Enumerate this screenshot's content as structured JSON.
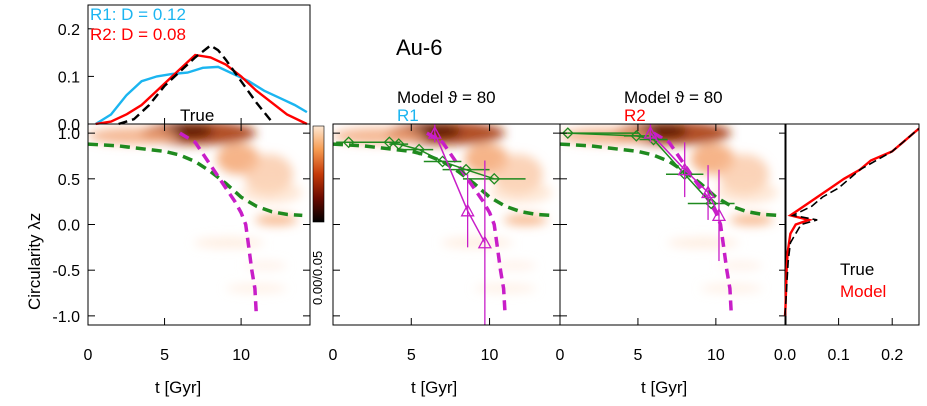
{
  "chart_data": {
    "type": "line",
    "figure_title": "Au-6",
    "axes": {
      "x": {
        "label": "t [Gyr]",
        "range": [
          0,
          14.5
        ],
        "ticks": [
          0,
          5,
          10
        ]
      },
      "y": {
        "label": "Circularity λz",
        "range": [
          -1.1,
          1.1
        ],
        "ticks": [
          "1.0",
          "0.5",
          "0.0",
          "-0.5",
          "-1.0"
        ]
      },
      "top_y": {
        "range": [
          0,
          0.25
        ],
        "ticks": [
          "0.0",
          "0.1",
          "0.2"
        ]
      },
      "right_x": {
        "range": [
          0,
          0.25
        ],
        "ticks": [
          "0.0",
          "0.1",
          "0.2"
        ]
      }
    },
    "colorbar_label": "0.00/0.05",
    "top_panel": {
      "legend": [
        {
          "name": "R1: D = 0.12",
          "color": "#1bb5f0"
        },
        {
          "name": "R2: D = 0.08",
          "color": "#ff0000"
        }
      ],
      "series": [
        {
          "name": "R1",
          "style": "solid",
          "color": "#1bb5f0",
          "x": [
            0.5,
            1.5,
            2.5,
            3.5,
            4.5,
            5.5,
            6.5,
            7.5,
            8.5,
            9.5,
            10.5,
            11.5,
            12.5,
            13.5,
            14.3
          ],
          "y": [
            0.0,
            0.02,
            0.06,
            0.09,
            0.1,
            0.105,
            0.108,
            0.118,
            0.12,
            0.105,
            0.09,
            0.07,
            0.055,
            0.04,
            0.025
          ]
        },
        {
          "name": "R2",
          "style": "solid",
          "color": "#ff0000",
          "x": [
            0.5,
            1.5,
            2.5,
            3.5,
            4.5,
            5.5,
            6.5,
            7.0,
            8.0,
            9.0,
            10.0,
            11.0,
            12.0,
            13.0,
            14.3
          ],
          "y": [
            0.0,
            0.005,
            0.02,
            0.04,
            0.07,
            0.1,
            0.13,
            0.145,
            0.14,
            0.125,
            0.1,
            0.07,
            0.045,
            0.02,
            0.0
          ]
        },
        {
          "name": "True",
          "style": "dashed",
          "color": "#000000",
          "x": [
            2.0,
            3.0,
            4.0,
            5.0,
            6.0,
            7.0,
            8.0,
            8.5,
            9.0,
            10.0,
            11.0,
            12.0
          ],
          "y": [
            0.0,
            0.01,
            0.04,
            0.08,
            0.11,
            0.14,
            0.165,
            0.155,
            0.135,
            0.09,
            0.045,
            0.005
          ]
        }
      ]
    },
    "panels": [
      {
        "label": "True",
        "label_color": "#000000",
        "smooth_curve": {
          "x": [
            0,
            1,
            2,
            3,
            4,
            5,
            6,
            7,
            8,
            9,
            10,
            11,
            12,
            13,
            14
          ],
          "y": [
            0.88,
            0.87,
            0.86,
            0.84,
            0.82,
            0.8,
            0.76,
            0.69,
            0.58,
            0.45,
            0.3,
            0.2,
            0.14,
            0.11,
            0.1
          ]
        },
        "magenta_curve": {
          "x": [
            6.0,
            7.0,
            8.0,
            9.0,
            9.6,
            10.0,
            10.3,
            10.5,
            10.7,
            10.9,
            11.0
          ],
          "y": [
            1.0,
            0.9,
            0.65,
            0.4,
            0.25,
            0.13,
            0.0,
            -0.25,
            -0.5,
            -0.7,
            -1.0
          ]
        }
      },
      {
        "label": "R1",
        "label_color": "#1bb5f0",
        "model_title": "Model  ϑ = 80",
        "smooth_curve": {
          "x": [
            0,
            1,
            2,
            3,
            4,
            5,
            6,
            7,
            8,
            9,
            10,
            11,
            12,
            13,
            14
          ],
          "y": [
            0.88,
            0.87,
            0.86,
            0.84,
            0.82,
            0.8,
            0.76,
            0.69,
            0.58,
            0.45,
            0.3,
            0.2,
            0.14,
            0.11,
            0.1
          ]
        },
        "magenta_curve": {
          "x": [
            6.0,
            7.0,
            8.0,
            9.0,
            9.6,
            10.0,
            10.3,
            10.5,
            10.7,
            10.9,
            11.0
          ],
          "y": [
            1.0,
            0.9,
            0.65,
            0.4,
            0.25,
            0.13,
            0.0,
            -0.25,
            -0.5,
            -0.7,
            -1.0
          ]
        },
        "green_points": {
          "x": [
            1.0,
            3.6,
            4.2,
            5.5,
            7.0,
            8.5,
            10.3
          ],
          "y": [
            0.9,
            0.9,
            0.88,
            0.82,
            0.69,
            0.6,
            0.5
          ],
          "xerr": [
            0.8,
            0.7,
            0.6,
            0.9,
            1.2,
            1.5,
            2.0
          ]
        },
        "magenta_points": {
          "x": [
            6.5,
            8.6,
            9.7
          ],
          "y": [
            1.0,
            0.15,
            -0.2
          ],
          "yerr": [
            0.1,
            0.4,
            0.9
          ]
        }
      },
      {
        "label": "R2",
        "label_color": "#ff0000",
        "model_title": "Model  ϑ = 80",
        "smooth_curve": {
          "x": [
            0,
            1,
            2,
            3,
            4,
            5,
            6,
            7,
            8,
            9,
            10,
            11,
            12,
            13,
            14
          ],
          "y": [
            0.88,
            0.87,
            0.86,
            0.84,
            0.82,
            0.8,
            0.76,
            0.69,
            0.58,
            0.45,
            0.3,
            0.2,
            0.14,
            0.11,
            0.1
          ]
        },
        "magenta_curve": {
          "x": [
            6.0,
            7.0,
            8.0,
            9.0,
            9.6,
            10.0,
            10.3,
            10.5,
            10.7,
            10.9,
            11.0
          ],
          "y": [
            1.0,
            0.9,
            0.65,
            0.4,
            0.25,
            0.13,
            0.0,
            -0.25,
            -0.5,
            -0.7,
            -1.0
          ]
        },
        "green_points": {
          "x": [
            0.5,
            4.9,
            6.0,
            8.0,
            9.7
          ],
          "y": [
            1.0,
            0.97,
            0.93,
            0.55,
            0.23
          ],
          "xerr": [
            4.5,
            0.8,
            0.9,
            1.2,
            1.5
          ]
        },
        "magenta_points": {
          "x": [
            5.8,
            8.0,
            9.5,
            10.2
          ],
          "y": [
            1.0,
            0.6,
            0.35,
            0.1
          ],
          "yerr": [
            0.1,
            0.3,
            0.3,
            0.5
          ]
        }
      }
    ],
    "right_panel": {
      "legend": [
        {
          "name": "True",
          "color": "#000000"
        },
        {
          "name": "Model",
          "color": "#ff0000"
        }
      ],
      "series": [
        {
          "name": "Model",
          "style": "solid",
          "color": "#ff0000",
          "y": [
            -1.0,
            -0.9,
            -0.7,
            -0.5,
            -0.3,
            -0.1,
            0.0,
            0.05,
            0.1,
            0.2,
            0.3,
            0.4,
            0.5,
            0.6,
            0.7,
            0.8,
            0.9,
            1.0,
            1.05
          ],
          "x": [
            0.0,
            0.001,
            0.002,
            0.003,
            0.005,
            0.01,
            0.02,
            0.045,
            0.01,
            0.035,
            0.06,
            0.085,
            0.11,
            0.14,
            0.16,
            0.2,
            0.22,
            0.24,
            0.25
          ]
        },
        {
          "name": "True",
          "style": "dashed",
          "color": "#000000",
          "y": [
            -1.0,
            -0.8,
            -0.6,
            -0.4,
            -0.2,
            -0.1,
            0.0,
            0.05,
            0.1,
            0.2,
            0.3,
            0.4,
            0.5,
            0.6,
            0.7,
            0.8,
            0.9,
            1.0,
            1.05
          ],
          "x": [
            0.0,
            0.002,
            0.004,
            0.006,
            0.01,
            0.02,
            0.03,
            0.06,
            0.015,
            0.05,
            0.07,
            0.1,
            0.12,
            0.14,
            0.17,
            0.2,
            0.22,
            0.24,
            0.25
          ]
        }
      ]
    }
  }
}
